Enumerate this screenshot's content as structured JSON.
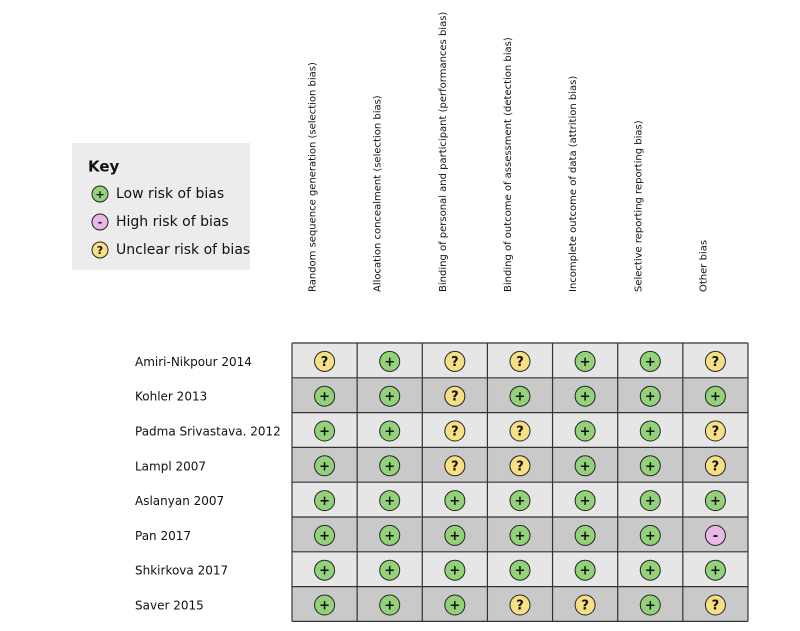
{
  "key": {
    "title": "Key",
    "items": [
      {
        "symbol": "+",
        "label": "Low risk of bias",
        "color": "#93d27b"
      },
      {
        "symbol": "-",
        "label": "High risk of bias",
        "color": "#eab7e6"
      },
      {
        "symbol": "?",
        "label": "Unclear risk of bias",
        "color": "#f7df86"
      }
    ]
  },
  "columns": [
    "Random sequence generation (selection bias)",
    "Allocation concealment (selection bias)",
    "Binding of personal and participant (performances bias)",
    "Binding of outcome of assessment (detection bias)",
    "Incomplete outcome of data (attrition bias)",
    "Selective reporting reporting bias)",
    "Other bias"
  ],
  "rows": [
    {
      "study": "Amiri-Nikpour 2014",
      "cells": [
        "?",
        "+",
        "?",
        "?",
        "+",
        "+",
        "?"
      ]
    },
    {
      "study": "Kohler 2013",
      "cells": [
        "+",
        "+",
        "?",
        "+",
        "+",
        "+",
        "+"
      ]
    },
    {
      "study": "Padma Srivastava. 2012",
      "cells": [
        "+",
        "+",
        "?",
        "?",
        "+",
        "+",
        "?"
      ]
    },
    {
      "study": "Lampl 2007",
      "cells": [
        "+",
        "+",
        "?",
        "?",
        "+",
        "+",
        "?"
      ]
    },
    {
      "study": "Aslanyan  2007",
      "cells": [
        "+",
        "+",
        "+",
        "+",
        "+",
        "+",
        "+"
      ]
    },
    {
      "study": "Pan 2017",
      "cells": [
        "+",
        "+",
        "+",
        "+",
        "+",
        "+",
        "-"
      ]
    },
    {
      "study": "Shkirkova 2017",
      "cells": [
        "+",
        "+",
        "+",
        "+",
        "+",
        "+",
        "+"
      ]
    },
    {
      "study": "Saver 2015",
      "cells": [
        "+",
        "+",
        "+",
        "?",
        "?",
        "+",
        "?"
      ]
    }
  ]
}
